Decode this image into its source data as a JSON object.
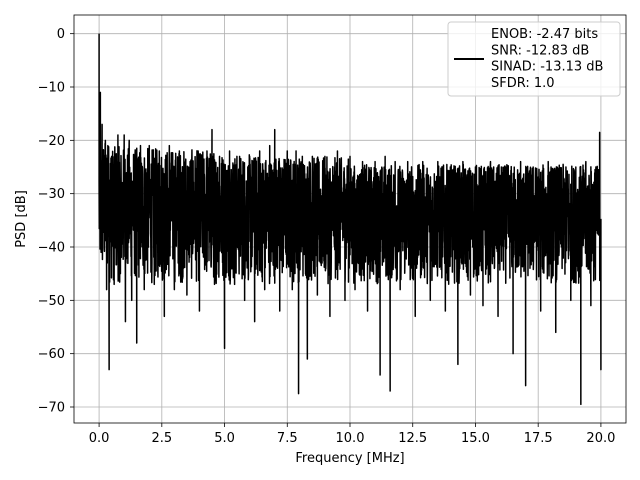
{
  "chart_data": {
    "type": "line",
    "xlabel": "Frequency [MHz]",
    "ylabel": "PSD [dB]",
    "xlim": [
      -1.0,
      21.0
    ],
    "ylim": [
      -73.0,
      3.5
    ],
    "xticks": [
      0.0,
      2.5,
      5.0,
      7.5,
      10.0,
      12.5,
      15.0,
      17.5,
      20.0
    ],
    "xtick_labels": [
      "0.0",
      "2.5",
      "5.0",
      "7.5",
      "10.0",
      "12.5",
      "15.0",
      "17.5",
      "20.0"
    ],
    "yticks": [
      0,
      -10,
      -20,
      -30,
      -40,
      -50,
      -60,
      -70
    ],
    "ytick_labels": [
      "0",
      "−10",
      "−20",
      "−30",
      "−40",
      "−50",
      "−60",
      "−70"
    ],
    "grid": true,
    "legend_position": "top-right",
    "series": [
      {
        "name": "ENOB: -2.47 bits\nSNR: -12.83 dB\nSINAD: -13.13 dB\nSFDR: 1.0",
        "color": "#000000",
        "x_range": [
          0.0,
          20.0
        ],
        "points": [
          [
            0.0,
            0.0
          ],
          [
            0.02,
            -31
          ],
          [
            0.05,
            -11
          ],
          [
            0.08,
            -41
          ],
          [
            0.12,
            -17
          ],
          [
            0.18,
            -35
          ],
          [
            0.25,
            -20
          ],
          [
            0.3,
            -48
          ],
          [
            0.35,
            -21
          ],
          [
            0.4,
            -63
          ],
          [
            0.5,
            -23
          ],
          [
            0.6,
            -47
          ],
          [
            0.75,
            -19
          ],
          [
            0.85,
            -45
          ],
          [
            1.0,
            -19
          ],
          [
            1.05,
            -54
          ],
          [
            1.2,
            -20
          ],
          [
            1.3,
            -50
          ],
          [
            1.4,
            -24
          ],
          [
            1.5,
            -58
          ],
          [
            1.65,
            -21
          ],
          [
            1.8,
            -48
          ],
          [
            2.0,
            -21
          ],
          [
            2.2,
            -47
          ],
          [
            2.4,
            -22
          ],
          [
            2.6,
            -53
          ],
          [
            2.8,
            -21
          ],
          [
            3.0,
            -48
          ],
          [
            3.2,
            -22
          ],
          [
            3.5,
            -49
          ],
          [
            3.7,
            -22
          ],
          [
            4.0,
            -52
          ],
          [
            4.3,
            -22
          ],
          [
            4.5,
            -18
          ],
          [
            4.6,
            -47
          ],
          [
            4.8,
            -23
          ],
          [
            5.0,
            -59
          ],
          [
            5.2,
            -22
          ],
          [
            5.4,
            -47
          ],
          [
            5.6,
            -23
          ],
          [
            5.8,
            -50
          ],
          [
            6.0,
            -23
          ],
          [
            6.2,
            -54
          ],
          [
            6.4,
            -22
          ],
          [
            6.6,
            -48
          ],
          [
            6.8,
            -21
          ],
          [
            7.0,
            -18
          ],
          [
            7.2,
            -52
          ],
          [
            7.5,
            -22
          ],
          [
            7.7,
            -48
          ],
          [
            7.85,
            -22
          ],
          [
            7.95,
            -67.5
          ],
          [
            8.1,
            -23
          ],
          [
            8.3,
            -61
          ],
          [
            8.5,
            -23
          ],
          [
            8.7,
            -49
          ],
          [
            9.0,
            -23
          ],
          [
            9.2,
            -53
          ],
          [
            9.5,
            -22
          ],
          [
            9.8,
            -50
          ],
          [
            10.0,
            -23
          ],
          [
            10.2,
            -48
          ],
          [
            10.5,
            -24
          ],
          [
            10.7,
            -52
          ],
          [
            11.0,
            -24
          ],
          [
            11.2,
            -64
          ],
          [
            11.4,
            -23
          ],
          [
            11.6,
            -67
          ],
          [
            11.8,
            -24
          ],
          [
            12.0,
            -48
          ],
          [
            12.3,
            -24
          ],
          [
            12.6,
            -53
          ],
          [
            12.9,
            -24
          ],
          [
            13.2,
            -50
          ],
          [
            13.5,
            -24
          ],
          [
            13.8,
            -52
          ],
          [
            14.0,
            -25
          ],
          [
            14.3,
            -62
          ],
          [
            14.5,
            -24
          ],
          [
            14.8,
            -49
          ],
          [
            15.0,
            -25
          ],
          [
            15.3,
            -51
          ],
          [
            15.6,
            -24
          ],
          [
            15.9,
            -53
          ],
          [
            16.2,
            -25
          ],
          [
            16.5,
            -60
          ],
          [
            16.8,
            -24
          ],
          [
            17.0,
            -66
          ],
          [
            17.3,
            -25
          ],
          [
            17.6,
            -52
          ],
          [
            17.9,
            -24
          ],
          [
            18.2,
            -56
          ],
          [
            18.5,
            -25
          ],
          [
            18.8,
            -50
          ],
          [
            19.0,
            -25
          ],
          [
            19.2,
            -69.5
          ],
          [
            19.4,
            -24
          ],
          [
            19.6,
            -51
          ],
          [
            19.8,
            -25
          ],
          [
            19.95,
            -18.5
          ],
          [
            20.0,
            -63
          ]
        ]
      }
    ]
  }
}
